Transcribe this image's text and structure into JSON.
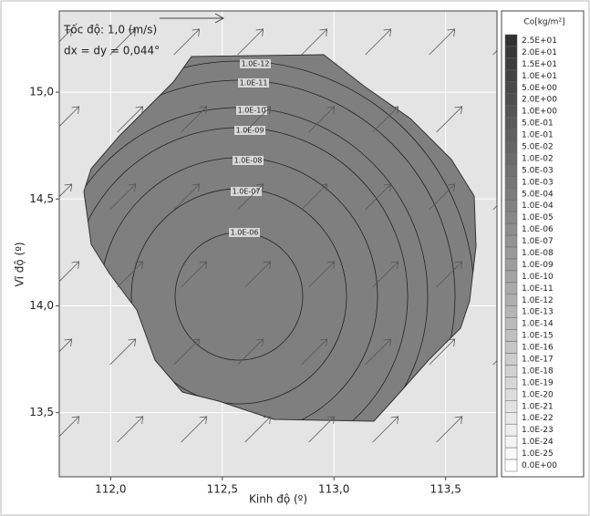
{
  "chart_data": {
    "type": "contour",
    "annotations": [
      "Tốc độ: 1,0 (m/s)",
      "dx = dy = 0,044°"
    ],
    "x_label": "Kinh độ (º)",
    "y_label": "Vĩ độ (º)",
    "xlim": [
      111.77,
      113.73
    ],
    "ylim": [
      13.2,
      15.38
    ],
    "xticks": [
      {
        "value": 112,
        "label": "112,0"
      },
      {
        "value": 112.5,
        "label": "112,5"
      },
      {
        "value": 113,
        "label": "113,0"
      },
      {
        "value": 113.5,
        "label": "113,5"
      }
    ],
    "yticks": [
      {
        "value": 13.5,
        "label": "13,5"
      },
      {
        "value": 14,
        "label": "14,0"
      },
      {
        "value": 14.5,
        "label": "14,5"
      },
      {
        "value": 15,
        "label": "15,0"
      }
    ],
    "grid": true,
    "contours": [
      {
        "value": 1e-12,
        "label": "1.0E-12"
      },
      {
        "value": 1e-11,
        "label": "1.0E-11"
      },
      {
        "value": 1e-10,
        "label": "1.0E-10"
      },
      {
        "value": 1e-09,
        "label": "1.0E-09"
      },
      {
        "value": 1e-08,
        "label": "1.0E-08"
      },
      {
        "value": 1e-07,
        "label": "1.0E-07"
      },
      {
        "value": 1e-06,
        "label": "1.0E-06"
      }
    ],
    "colorbar": {
      "title": "Co[kg/m²]",
      "levels": [
        {
          "value": 25,
          "label": "2.5E+01"
        },
        {
          "value": 20,
          "label": "2.0E+01"
        },
        {
          "value": 15,
          "label": "1.5E+01"
        },
        {
          "value": 10,
          "label": "1.0E+01"
        },
        {
          "value": 5,
          "label": "5.0E+00"
        },
        {
          "value": 2,
          "label": "2.0E+00"
        },
        {
          "value": 1,
          "label": "1.0E+00"
        },
        {
          "value": 0.5,
          "label": "5.0E-01"
        },
        {
          "value": 0.1,
          "label": "1.0E-01"
        },
        {
          "value": 0.05,
          "label": "5.0E-02"
        },
        {
          "value": 0.01,
          "label": "1.0E-02"
        },
        {
          "value": 0.005,
          "label": "5.0E-03"
        },
        {
          "value": 0.001,
          "label": "1.0E-03"
        },
        {
          "value": 0.0005,
          "label": "5.0E-04"
        },
        {
          "value": 0.0001,
          "label": "1.0E-04"
        },
        {
          "value": 1e-05,
          "label": "1.0E-05"
        },
        {
          "value": 1e-06,
          "label": "1.0E-06"
        },
        {
          "value": 1e-07,
          "label": "1.0E-07"
        },
        {
          "value": 1e-08,
          "label": "1.0E-08"
        },
        {
          "value": 1e-09,
          "label": "1.0E-09"
        },
        {
          "value": 1e-10,
          "label": "1.0E-10"
        },
        {
          "value": 1e-11,
          "label": "1.0E-11"
        },
        {
          "value": 1e-12,
          "label": "1.0E-12"
        },
        {
          "value": 1e-13,
          "label": "1.0E-13"
        },
        {
          "value": 1e-14,
          "label": "1.0E-14"
        },
        {
          "value": 1e-15,
          "label": "1.0E-15"
        },
        {
          "value": 1e-16,
          "label": "1.0E-16"
        },
        {
          "value": 1e-17,
          "label": "1.0E-17"
        },
        {
          "value": 1e-18,
          "label": "1.0E-18"
        },
        {
          "value": 1e-19,
          "label": "1.0E-19"
        },
        {
          "value": 1e-20,
          "label": "1.0E-20"
        },
        {
          "value": 1e-21,
          "label": "1.0E-21"
        },
        {
          "value": 1e-22,
          "label": "1.0E-22"
        },
        {
          "value": 1e-23,
          "label": "1.0E-23"
        },
        {
          "value": 1e-24,
          "label": "1.0E-24"
        },
        {
          "value": 1e-25,
          "label": "1.0E-25"
        },
        {
          "value": 0,
          "label": "0.0E+00"
        }
      ]
    }
  }
}
